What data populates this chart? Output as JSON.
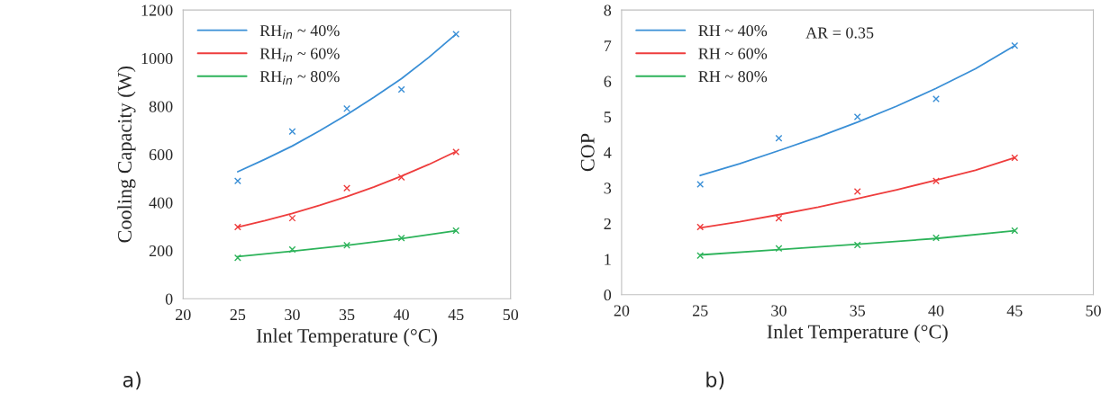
{
  "chart_data": [
    {
      "type": "scatter",
      "xlabel": "Inlet Temperature (°C)",
      "ylabel": "Cooling Capacity (W)",
      "xlim": [
        20,
        50
      ],
      "xticks": [
        20,
        25,
        30,
        35,
        40,
        45,
        50
      ],
      "ylim": [
        0,
        1200
      ],
      "yticks": [
        0,
        200,
        400,
        600,
        800,
        1000,
        1200
      ],
      "legend": "top left",
      "annotations": [
        "a)"
      ],
      "series": [
        {
          "name": "RH$_{in}$ ~ 40%",
          "color": "#3a8fd6",
          "type": "line",
          "marker": "none",
          "x": [
            25,
            27.5,
            30,
            32.5,
            35,
            37.5,
            40,
            42.5,
            45
          ],
          "values": [
            528,
            580,
            635,
            698,
            765,
            838,
            915,
            1003,
            1100
          ]
        },
        {
          "name": "RH$_{in}$ ~ 60%",
          "color": "#ee3d3d",
          "type": "line",
          "marker": "none",
          "x": [
            25,
            27.5,
            30,
            32.5,
            35,
            37.5,
            40,
            42.5,
            45
          ],
          "values": [
            298,
            325,
            355,
            388,
            425,
            465,
            510,
            558,
            612
          ]
        },
        {
          "name": "RH$_{in}$ ~ 80%",
          "color": "#2db35a",
          "type": "line",
          "marker": "none",
          "x": [
            25,
            30,
            35,
            40,
            45
          ],
          "values": [
            175,
            198,
            222,
            250,
            283
          ]
        },
        {
          "color": "#3a8fd6",
          "marker": "cross",
          "x": [
            25,
            30,
            35,
            40,
            45
          ],
          "values": [
            490,
            695,
            790,
            870,
            1100
          ]
        },
        {
          "color": "#ee3d3d",
          "marker": "cross",
          "x": [
            25,
            30,
            35,
            40,
            45
          ],
          "values": [
            298,
            335,
            460,
            505,
            610
          ]
        },
        {
          "color": "#2db35a",
          "marker": "cross",
          "x": [
            25,
            30,
            35,
            40,
            45
          ],
          "values": [
            170,
            205,
            222,
            252,
            283
          ]
        }
      ]
    },
    {
      "type": "scatter",
      "xlabel": "Inlet Temperature (°C)",
      "ylabel": "COP",
      "xlim": [
        20,
        50
      ],
      "xticks": [
        20,
        25,
        30,
        35,
        40,
        45,
        50
      ],
      "ylim": [
        0,
        8
      ],
      "yticks": [
        0,
        1,
        2,
        3,
        4,
        5,
        6,
        7,
        8
      ],
      "legend": "top left",
      "annotations": [
        "b)",
        "AR = 0.35"
      ],
      "series": [
        {
          "name": "RH ~ 40%",
          "color": "#3a8fd6",
          "type": "line",
          "marker": "none",
          "x": [
            25,
            27.5,
            30,
            32.5,
            35,
            37.5,
            40,
            42.5,
            45
          ],
          "values": [
            3.35,
            3.68,
            4.05,
            4.43,
            4.85,
            5.3,
            5.8,
            6.35,
            7.0
          ]
        },
        {
          "name": "RH ~ 60%",
          "color": "#ee3d3d",
          "type": "line",
          "marker": "none",
          "x": [
            25,
            27.5,
            30,
            32.5,
            35,
            37.5,
            40,
            42.5,
            45
          ],
          "values": [
            1.88,
            2.05,
            2.25,
            2.46,
            2.7,
            2.95,
            3.22,
            3.5,
            3.85
          ]
        },
        {
          "name": "RH ~ 80%",
          "color": "#2db35a",
          "type": "line",
          "marker": "none",
          "x": [
            25,
            30,
            35,
            40,
            45
          ],
          "values": [
            1.12,
            1.27,
            1.42,
            1.58,
            1.8
          ]
        },
        {
          "color": "#3a8fd6",
          "marker": "cross",
          "x": [
            25,
            30,
            35,
            40,
            45
          ],
          "values": [
            3.1,
            4.4,
            5.0,
            5.5,
            7.0
          ]
        },
        {
          "color": "#ee3d3d",
          "marker": "cross",
          "x": [
            25,
            30,
            35,
            40,
            45
          ],
          "values": [
            1.9,
            2.15,
            2.9,
            3.2,
            3.85
          ]
        },
        {
          "color": "#2db35a",
          "marker": "cross",
          "x": [
            25,
            30,
            35,
            40,
            45
          ],
          "values": [
            1.1,
            1.3,
            1.4,
            1.6,
            1.8
          ]
        }
      ]
    }
  ]
}
